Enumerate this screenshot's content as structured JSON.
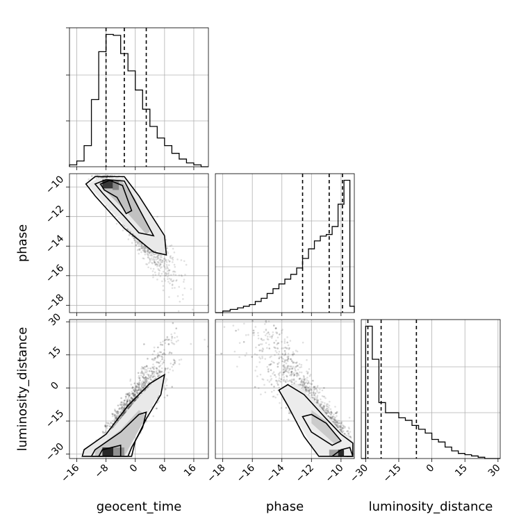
{
  "chart_data": {
    "type": "corner",
    "parameters": [
      {
        "name": "geocent_time",
        "label": "geocent_time",
        "range": [
          -18,
          20
        ],
        "ticks": [
          -16,
          -8,
          0,
          8,
          16
        ],
        "quantiles": [
          -8,
          -3,
          3
        ],
        "hist": {
          "edges": [
            -18,
            -16,
            -14,
            -12,
            -10,
            -8,
            -6,
            -4,
            -2,
            0,
            2,
            4,
            6,
            8,
            10,
            12,
            14,
            16,
            18,
            20
          ],
          "counts": [
            2,
            6,
            22,
            70,
            120,
            138,
            137,
            118,
            100,
            80,
            60,
            42,
            30,
            22,
            14,
            8,
            4,
            2,
            0
          ]
        }
      },
      {
        "name": "phase",
        "label": "phase",
        "range": [
          -18.5,
          -9.1
        ],
        "ticks": [
          -18,
          -16,
          -14,
          -12,
          -10
        ],
        "quantiles": [
          -12.6,
          -10.8,
          -9.9
        ],
        "hist": {
          "edges": [
            -18.5,
            -18.0,
            -17.5,
            -17.0,
            -16.6,
            -16.2,
            -15.8,
            -15.4,
            -15.0,
            -14.6,
            -14.2,
            -13.8,
            -13.4,
            -13.0,
            -12.6,
            -12.2,
            -11.8,
            -11.4,
            -11.0,
            -10.6,
            -10.2,
            -9.8,
            -9.4,
            -9.1
          ],
          "counts": [
            0,
            1,
            2,
            3,
            4,
            5,
            7,
            9,
            12,
            15,
            18,
            21,
            24,
            28,
            34,
            40,
            45,
            48,
            49,
            54,
            68,
            83,
            4
          ]
        }
      },
      {
        "name": "luminosity_distance",
        "label": "luminosity_distance",
        "range": [
          -32,
          31
        ],
        "ticks": [
          -30,
          -15,
          0,
          15,
          30
        ],
        "quantiles": [
          -29,
          -23,
          -7
        ],
        "hist": {
          "edges": [
            -32,
            -30,
            -27,
            -24,
            -21,
            -18,
            -15,
            -12,
            -9,
            -6,
            -3,
            0,
            3,
            6,
            9,
            12,
            15,
            18,
            21,
            24,
            27,
            31
          ],
          "counts": [
            0,
            104,
            78,
            44,
            36,
            36,
            32,
            30,
            26,
            23,
            20,
            15,
            13,
            9,
            6,
            4,
            3,
            2,
            1,
            0,
            0
          ]
        }
      }
    ],
    "pairs": [
      {
        "x": 0,
        "y": 1,
        "yticks": [
          -10,
          -12,
          -14,
          -16,
          -18
        ],
        "correlation": "negative"
      },
      {
        "x": 0,
        "y": 2,
        "yticks": [
          -30,
          -15,
          0,
          15,
          30
        ],
        "correlation": "positive"
      },
      {
        "x": 1,
        "y": 2,
        "correlation": "negative"
      }
    ],
    "grid": true,
    "xlabels": [
      "geocent_time",
      "phase",
      "luminosity_distance"
    ],
    "ylabels": [
      "phase",
      "luminosity_distance"
    ]
  }
}
